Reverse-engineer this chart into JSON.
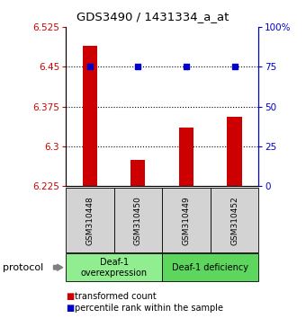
{
  "title": "GDS3490 / 1431334_a_at",
  "samples": [
    "GSM310448",
    "GSM310450",
    "GSM310449",
    "GSM310452"
  ],
  "bar_values": [
    6.49,
    6.275,
    6.335,
    6.355
  ],
  "percentile_values": [
    75,
    75,
    75,
    75
  ],
  "bar_color": "#cc0000",
  "percentile_color": "#0000cc",
  "ylim_left": [
    6.225,
    6.525
  ],
  "ylim_right": [
    0,
    100
  ],
  "yticks_left": [
    6.225,
    6.3,
    6.375,
    6.45,
    6.525
  ],
  "ytick_labels_left": [
    "6.225",
    "6.3",
    "6.375",
    "6.45",
    "6.525"
  ],
  "yticks_right": [
    0,
    25,
    50,
    75,
    100
  ],
  "ytick_labels_right": [
    "0",
    "25",
    "50",
    "75",
    "100%"
  ],
  "hlines": [
    6.3,
    6.375,
    6.45
  ],
  "groups": [
    {
      "label": "Deaf-1\noverexpression",
      "samples": [
        "GSM310448",
        "GSM310450"
      ],
      "color": "#90ee90"
    },
    {
      "label": "Deaf-1 deficiency",
      "samples": [
        "GSM310449",
        "GSM310452"
      ],
      "color": "#5cd65c"
    }
  ],
  "legend_items": [
    {
      "color": "#cc0000",
      "label": "transformed count"
    },
    {
      "color": "#0000cc",
      "label": "percentile rank within the sample"
    }
  ],
  "protocol_label": "protocol",
  "background_color": "#ffffff"
}
